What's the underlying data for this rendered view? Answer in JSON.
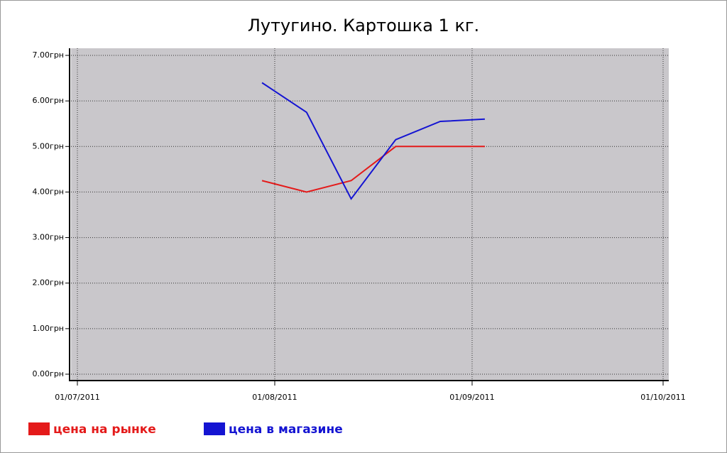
{
  "chart_data": {
    "type": "line",
    "title": "Лутугино. Картошка 1 кг.",
    "x": [
      "30/07/2011",
      "06/08/2011",
      "13/08/2011",
      "20/08/2011",
      "27/08/2011",
      "03/09/2011"
    ],
    "series": [
      {
        "name": "цена на рынке",
        "color": "#e41a1a",
        "values": [
          4.25,
          4.0,
          4.25,
          5.0,
          5.0,
          5.0
        ]
      },
      {
        "name": "цена в магазине",
        "color": "#1414d2",
        "values": [
          6.4,
          5.75,
          3.85,
          5.15,
          5.55,
          5.6
        ]
      }
    ],
    "xlim": [
      "01/07/2011",
      "01/10/2011"
    ],
    "xticks": [
      "01/07/2011",
      "01/08/2011",
      "01/09/2011",
      "01/10/2011"
    ],
    "ylim": [
      0,
      7
    ],
    "yticks": [
      {
        "value": 0,
        "label": "0.00грн"
      },
      {
        "value": 1,
        "label": "1.00грн"
      },
      {
        "value": 2,
        "label": "2.00грн"
      },
      {
        "value": 3,
        "label": "3.00грн"
      },
      {
        "value": 4,
        "label": "4.00грн"
      },
      {
        "value": 5,
        "label": "5.00грн"
      },
      {
        "value": 6,
        "label": "6.00грн"
      },
      {
        "value": 7,
        "label": "7.00грн"
      }
    ],
    "grid": true,
    "legend": "bottom-left"
  }
}
